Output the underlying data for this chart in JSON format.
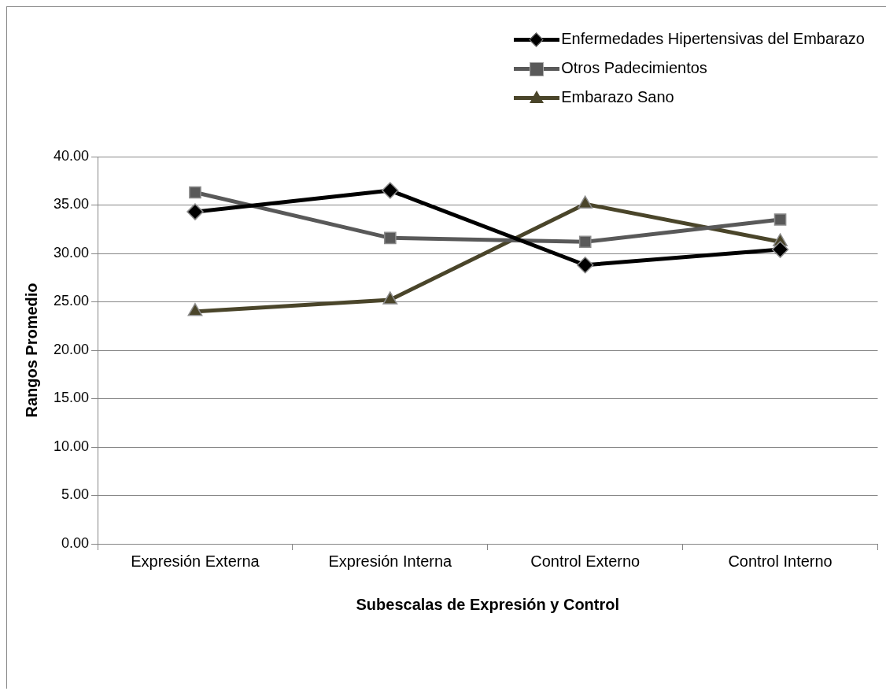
{
  "chart_data": {
    "type": "line",
    "xlabel": "Subescalas de Expresión y Control",
    "ylabel": "Rangos Promedio",
    "categories": [
      "Expresión Externa",
      "Expresión Interna",
      "Control Externo",
      "Control Interno"
    ],
    "series": [
      {
        "name": "Enfermedades Hipertensivas del Embarazo",
        "color": "#000000",
        "marker": "diamond",
        "values": [
          34.3,
          36.5,
          28.8,
          30.4
        ]
      },
      {
        "name": "Otros Padecimientos",
        "color": "#595959",
        "marker": "square",
        "values": [
          36.3,
          31.6,
          31.2,
          33.5
        ]
      },
      {
        "name": "Embarazo Sano",
        "color": "#4a452a",
        "marker": "triangle",
        "values": [
          24.0,
          25.2,
          35.1,
          31.2
        ]
      }
    ],
    "ylim": [
      0,
      40
    ],
    "yticks": [
      {
        "value": 0,
        "label": "0.00"
      },
      {
        "value": 5,
        "label": "5.00"
      },
      {
        "value": 10,
        "label": "10.00"
      },
      {
        "value": 15,
        "label": "15.00"
      },
      {
        "value": 20,
        "label": "20.00"
      },
      {
        "value": 25,
        "label": "25.00"
      },
      {
        "value": 30,
        "label": "30.00"
      },
      {
        "value": 35,
        "label": "35.00"
      },
      {
        "value": 40,
        "label": "40.00"
      }
    ],
    "grid": "y",
    "legend": "top right",
    "line_style": "solid"
  }
}
